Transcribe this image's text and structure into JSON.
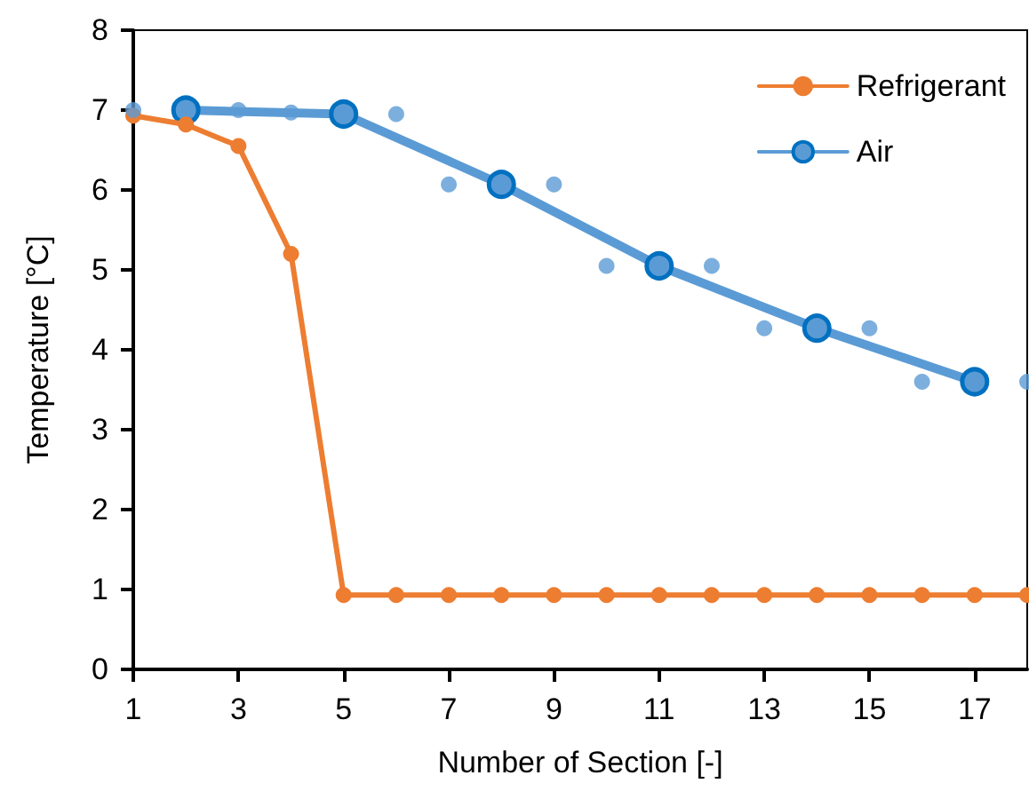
{
  "chart_data": {
    "type": "line",
    "xlabel": "Number of Section [-]",
    "ylabel": "Temperature [°C]",
    "xlim": [
      1,
      18
    ],
    "xticks": [
      1,
      3,
      5,
      7,
      9,
      11,
      13,
      15,
      17
    ],
    "ylim": [
      0,
      8
    ],
    "yticks": [
      0,
      1,
      2,
      3,
      4,
      5,
      6,
      7,
      8
    ],
    "grid": false,
    "legend": "top right",
    "marker": "circle",
    "series": [
      {
        "name": "Refrigerant",
        "color": "#ed7d31",
        "x": [
          1,
          2,
          3,
          4,
          5,
          6,
          7,
          8,
          9,
          10,
          11,
          12,
          13,
          14,
          15,
          16,
          17,
          18
        ],
        "values": [
          6.93,
          6.82,
          6.55,
          5.2,
          0.93,
          0.93,
          0.93,
          0.93,
          0.93,
          0.93,
          0.93,
          0.93,
          0.93,
          0.93,
          0.93,
          0.93,
          0.93,
          0.93
        ]
      },
      {
        "name": "Air",
        "color": "#5b9bd5",
        "x": [
          2,
          5,
          8,
          11,
          14,
          17
        ],
        "values": [
          7.0,
          6.95,
          6.07,
          5.05,
          4.27,
          3.6
        ]
      },
      {
        "type": "scatter",
        "color": "#5b9bd5",
        "x": [
          1,
          2,
          3,
          4,
          5,
          6,
          7,
          8,
          9,
          10,
          11,
          12,
          13,
          14,
          15,
          16,
          17,
          18
        ],
        "values": [
          7.0,
          null,
          7.0,
          6.97,
          null,
          6.95,
          6.07,
          null,
          6.07,
          5.05,
          null,
          5.05,
          4.27,
          null,
          4.27,
          3.6,
          null,
          3.6
        ]
      }
    ]
  }
}
